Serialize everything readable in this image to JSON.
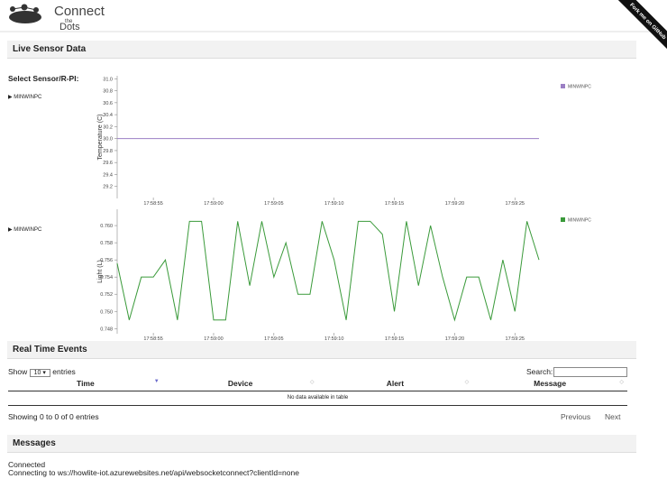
{
  "header": {
    "logo": [
      "Connect",
      "the",
      "Dots"
    ],
    "ribbon": "Fork me on GitHub"
  },
  "sensor_section": {
    "title": "Live Sensor Data",
    "select_label": "Select Sensor/R-PI:",
    "sensors": [
      "MINWINPC",
      "MINWINPC"
    ]
  },
  "chart_data": [
    {
      "type": "line",
      "ylabel": "Temperature (C)",
      "xlim": [
        "17:58:52",
        "17:59:27"
      ],
      "xticks": [
        "17:58:55",
        "17:59:00",
        "17:59:05",
        "17:59:10",
        "17:59:15",
        "17:59:20",
        "17:59:25"
      ],
      "ylim": [
        29.0,
        31.05
      ],
      "yticks": [
        29.2,
        29.4,
        29.6,
        29.8,
        {
          "value": 30.0,
          "label": "30.0"
        },
        30.2,
        30.4,
        30.6,
        30.8,
        {
          "value": 31.0,
          "label": "31.0"
        }
      ],
      "x": [
        "17:58:52",
        "17:59:27"
      ],
      "series": [
        {
          "name": "MINWINPC",
          "color": "#9b7fc4",
          "values": [
            30.0,
            30.0
          ]
        }
      ]
    },
    {
      "type": "line",
      "ylabel": "Light (L)",
      "xlim": [
        "17:58:52",
        "17:59:27"
      ],
      "xticks": [
        "17:58:55",
        "17:59:00",
        "17:59:05",
        "17:59:10",
        "17:59:15",
        "17:59:20",
        "17:59:25"
      ],
      "ylim": [
        0.7474,
        0.7619
      ],
      "yticks": [
        0.748,
        {
          "value": 0.75,
          "label": "0.750"
        },
        0.752,
        0.754,
        0.756,
        0.758,
        {
          "value": 0.76,
          "label": "0.760"
        }
      ],
      "x": [
        "17:58:52",
        "17:58:53",
        "17:58:54",
        "17:58:55",
        "17:58:56",
        "17:58:57",
        "17:58:58",
        "17:58:59",
        "17:59:00",
        "17:59:01",
        "17:59:02",
        "17:59:03",
        "17:59:04",
        "17:59:05",
        "17:59:06",
        "17:59:07",
        "17:59:08",
        "17:59:09",
        "17:59:10",
        "17:59:11",
        "17:59:12",
        "17:59:13",
        "17:59:14",
        "17:59:15",
        "17:59:16",
        "17:59:17",
        "17:59:18",
        "17:59:19",
        "17:59:20",
        "17:59:21",
        "17:59:22",
        "17:59:23",
        "17:59:24",
        "17:59:25",
        "17:59:26",
        "17:59:27"
      ],
      "series": [
        {
          "name": "MINWINPC",
          "color": "#3a9a3a",
          "values": [
            0.7556,
            0.749,
            0.754,
            0.754,
            0.756,
            0.749,
            0.7605,
            0.7605,
            0.749,
            0.749,
            0.7605,
            0.753,
            0.7605,
            0.754,
            0.758,
            0.752,
            0.752,
            0.7605,
            0.756,
            0.749,
            0.7605,
            0.7605,
            0.759,
            0.75,
            0.7605,
            0.753,
            0.76,
            0.754,
            0.749,
            0.754,
            0.754,
            0.749,
            0.756,
            0.75,
            0.7605,
            0.756
          ]
        }
      ]
    }
  ],
  "events_section": {
    "title": "Real Time Events",
    "show": "Show",
    "page_size": "10",
    "entries": "entries",
    "search": "Search:",
    "table": {
      "columns": [
        "Time",
        "Device",
        "Alert",
        "Message"
      ],
      "empty": "No data available in table"
    },
    "info": "Showing 0 to 0 of 0 entries",
    "previous": "Previous",
    "next": "Next"
  },
  "messages_section": {
    "title": "Messages",
    "lines": [
      "Connected",
      "Connecting to ws://howlite-iot.azurewebsites.net/api/websocketconnect?clientId=none"
    ]
  }
}
